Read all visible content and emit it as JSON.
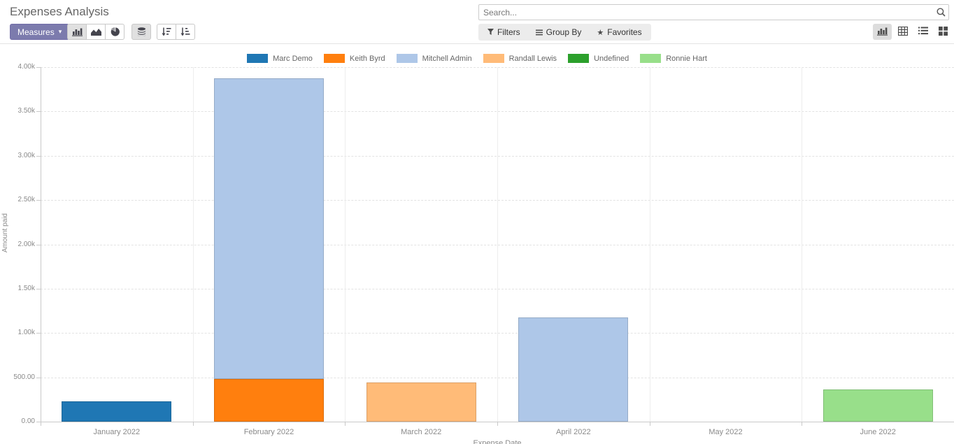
{
  "header": {
    "title": "Expenses Analysis"
  },
  "search": {
    "placeholder": "Search..."
  },
  "toolbar": {
    "measures_label": "Measures",
    "chart_type_buttons": [
      {
        "name": "bar-chart",
        "active": true
      },
      {
        "name": "area-chart",
        "active": false
      },
      {
        "name": "pie-chart",
        "active": false
      }
    ],
    "extra_buttons": [
      {
        "name": "stacked",
        "active": true
      },
      {
        "name": "sort-desc",
        "active": false
      },
      {
        "name": "sort-asc",
        "active": false
      }
    ]
  },
  "filter_bar": {
    "filters_label": "Filters",
    "group_by_label": "Group By",
    "favorites_label": "Favorites"
  },
  "view_switcher": [
    {
      "name": "graph-view",
      "active": true
    },
    {
      "name": "pivot-view",
      "active": false
    },
    {
      "name": "list-view",
      "active": false
    },
    {
      "name": "kanban-view",
      "active": false
    }
  ],
  "colors": {
    "primary_button": "#7c7bad",
    "active_button_bg": "#e0e0e0"
  },
  "chart_data": {
    "type": "bar",
    "stacked": true,
    "title": "",
    "xlabel": "Expense Date",
    "ylabel": "Amount paid",
    "ylim": [
      0,
      4000
    ],
    "ytick_step": 500,
    "ytick_labels": [
      "0.00",
      "500.00",
      "1.00k",
      "1.50k",
      "2.00k",
      "2.50k",
      "3.00k",
      "3.50k",
      "4.00k"
    ],
    "grid": true,
    "legend_position": "top",
    "categories": [
      "January 2022",
      "February 2022",
      "March 2022",
      "April 2022",
      "May 2022",
      "June 2022"
    ],
    "series": [
      {
        "name": "Marc Demo",
        "color": "#1f77b4",
        "values": [
          225,
          0,
          0,
          0,
          0,
          0
        ]
      },
      {
        "name": "Keith Byrd",
        "color": "#ff7f0e",
        "values": [
          0,
          480,
          0,
          0,
          0,
          0
        ]
      },
      {
        "name": "Mitchell Admin",
        "color": "#aec7e8",
        "values": [
          0,
          3395,
          0,
          1175,
          0,
          0
        ]
      },
      {
        "name": "Randall Lewis",
        "color": "#ffbb78",
        "values": [
          0,
          0,
          440,
          0,
          0,
          0
        ]
      },
      {
        "name": "Undefined",
        "color": "#2ca02c",
        "values": [
          0,
          0,
          0,
          0,
          0,
          0
        ]
      },
      {
        "name": "Ronnie Hart",
        "color": "#98df8a",
        "values": [
          0,
          0,
          0,
          0,
          0,
          360
        ]
      }
    ]
  }
}
